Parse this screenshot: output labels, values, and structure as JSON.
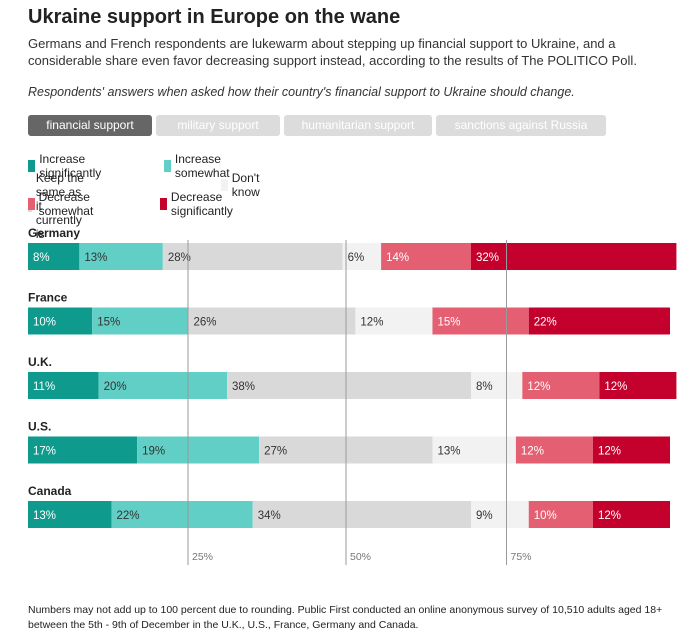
{
  "header": {
    "title": "Ukraine support in Europe on the wane",
    "subtitle": "Germans and French respondents are lukewarm about stepping up financial support to Ukraine, and a considerable share even favor decreasing support instead, according to the results of The POLITICO Poll.",
    "question": "Respondents' answers when asked how their country's financial support to Ukraine should change."
  },
  "tabs": [
    {
      "label": "financial support",
      "active": true
    },
    {
      "label": "military support",
      "active": false
    },
    {
      "label": "humanitarian support",
      "active": false
    },
    {
      "label": "sanctions against Russia",
      "active": false
    }
  ],
  "legend": [
    {
      "label": "Increase significantly",
      "color": "#0e9a8c"
    },
    {
      "label": "Increase somewhat",
      "color": "#62cfc6"
    },
    {
      "label": "Keep the same as it currently is",
      "color": "#d9d9d9"
    },
    {
      "label": "Don't know",
      "color": "#f2f2f2"
    },
    {
      "label": "Decrease somewhat",
      "color": "#e45f72"
    },
    {
      "label": "Decrease significantly",
      "color": "#c4012d"
    }
  ],
  "chart_data": {
    "type": "bar",
    "stacked": true,
    "orientation": "horizontal",
    "categories": [
      "Germany",
      "France",
      "U.K.",
      "U.S.",
      "Canada"
    ],
    "series": [
      {
        "name": "Increase significantly",
        "values": [
          8,
          10,
          11,
          17,
          13
        ]
      },
      {
        "name": "Increase somewhat",
        "values": [
          13,
          15,
          20,
          19,
          22
        ]
      },
      {
        "name": "Keep the same as it currently is",
        "values": [
          28,
          26,
          38,
          27,
          34
        ]
      },
      {
        "name": "Don't know",
        "values": [
          6,
          12,
          8,
          13,
          9
        ]
      },
      {
        "name": "Decrease somewhat",
        "values": [
          14,
          15,
          12,
          12,
          10
        ]
      },
      {
        "name": "Decrease significantly",
        "values": [
          32,
          22,
          12,
          12,
          12
        ]
      }
    ],
    "x_ticks": [
      "25%",
      "50%",
      "75%"
    ],
    "xlim": [
      0,
      100
    ]
  },
  "footnote": "Numbers may not add up to 100 percent due to rounding. Public First conducted an online anonymous survey of 10,510 adults aged 18+ between the 5th - 9th of December in the U.K., U.S., France, Germany and Canada."
}
